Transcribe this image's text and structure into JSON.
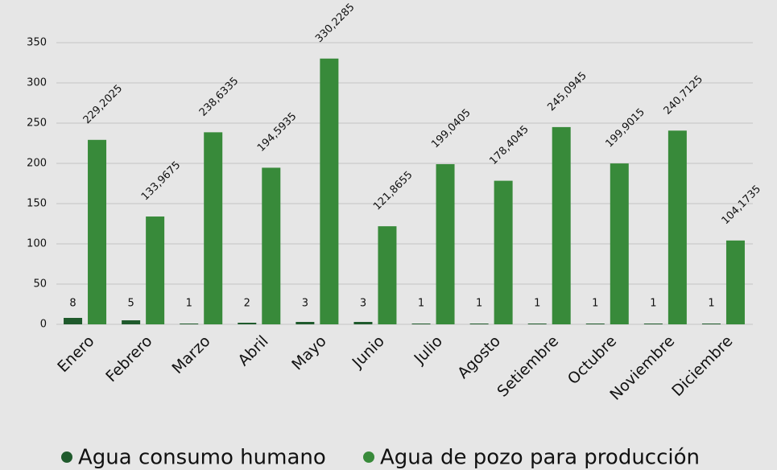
{
  "chart_data": {
    "type": "bar",
    "categories": [
      "Enero",
      "Febrero",
      "Marzo",
      "Abril",
      "Mayo",
      "Junio",
      "Julio",
      "Agosto",
      "Setiembre",
      "Octubre",
      "Noviembre",
      "Diciembre"
    ],
    "series": [
      {
        "name": "Agua consumo humano",
        "color": "#1f5a2c",
        "values": [
          8,
          5,
          1,
          2,
          3,
          3,
          1,
          1,
          1,
          1,
          1,
          1
        ]
      },
      {
        "name": "Agua de pozo para producción",
        "color": "#388a3a",
        "values": [
          229.2025,
          133.9675,
          238.6335,
          194.5935,
          330.2285,
          121.8655,
          199.0405,
          178.4045,
          245.0945,
          199.9015,
          240.7125,
          104.1735
        ],
        "value_labels": [
          "229,2025",
          "133,9675",
          "238,6335",
          "194,5935",
          "330,2285",
          "121,8655",
          "199,0405",
          "178,4045",
          "245,0945",
          "199,9015",
          "240,7125",
          "104,1735"
        ]
      }
    ],
    "ylim": [
      0,
      350
    ],
    "yticks": [
      0,
      50,
      100,
      150,
      200,
      250,
      300,
      350
    ],
    "grid": true
  }
}
